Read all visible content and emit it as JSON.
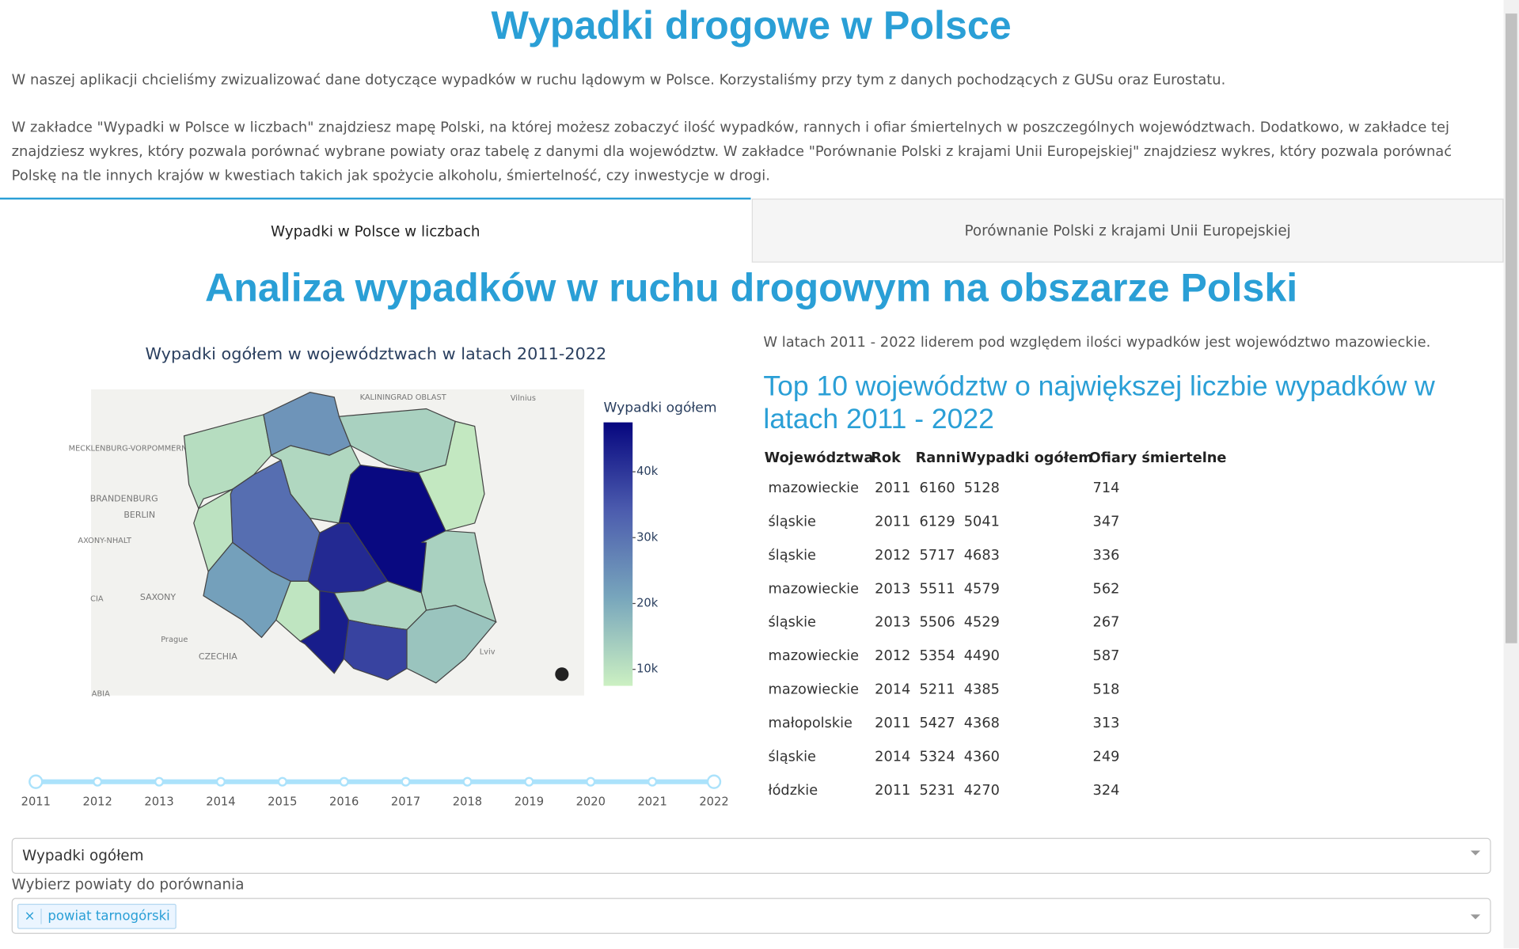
{
  "header": {
    "title": "Wypadki drogowe w Polsce",
    "paragraphs": [
      "W naszej aplikacji chcieliśmy zwizualizować dane dotyczące wypadków w ruchu lądowym w Polsce. Korzystaliśmy przy tym z danych pochodzących z GUSu oraz Eurostatu.",
      "W zakładce \"Wypadki w Polsce w liczbach\" znajdziesz mapę Polski, na której możesz zobaczyć ilość wypadków, rannych i ofiar śmiertelnych w poszczególnych województwach. Dodatkowo, w zakładce tej znajdziesz wykres, który pozwala porównać wybrane powiaty oraz tabelę z danymi dla województw. W zakładce \"Porównanie Polski z krajami Unii Europejskiej\" znajdziesz wykres, który pozwala porównać Polskę na tle innych krajów w kwestiach takich jak spożycie alkoholu, śmiertelność, czy inwestycje w drogi."
    ]
  },
  "tabs": [
    "Wypadki w Polsce w liczbach",
    "Porównanie Polski z krajami Unii Europejskiej"
  ],
  "section_title": "Analiza wypadków w ruchu drogowym na obszarze Polski",
  "map": {
    "title": "Wypadki ogółem w województwach w latach 2011-2022",
    "colorbar_title": "Wypadki ogółem",
    "colorbar_ticks": [
      {
        "value": 10000,
        "label": "10k"
      },
      {
        "value": 20000,
        "label": "20k"
      },
      {
        "value": 30000,
        "label": "30k"
      },
      {
        "value": 40000,
        "label": "40k"
      }
    ],
    "clim": [
      7500,
      47500
    ],
    "colorscale": [
      "#ccf0c2",
      "#78a6bc",
      "#4c5cae",
      "#06067f"
    ],
    "regions": [
      11000,
      24000,
      13000,
      9000,
      12000,
      31000,
      10000,
      47000,
      42000,
      22000,
      9500,
      44000,
      12500,
      38000,
      13000,
      15500
    ],
    "labels": [
      "KALININGRAD OBLAST",
      "Vilnius",
      "MECKLENBURG-VORPOMMERN",
      "BRANDENBURG",
      "BERLIN",
      "AXONY-NHALT",
      "SAXONY",
      "CIA",
      "Prague",
      "CZECHIA",
      "Lviv",
      "ABIA"
    ]
  },
  "slider": {
    "marks": [
      2011,
      2012,
      2013,
      2014,
      2015,
      2016,
      2017,
      2018,
      2019,
      2020,
      2021,
      2022
    ],
    "selected": [
      2011,
      2022
    ]
  },
  "summary": "W latach 2011 - 2022 liderem pod względem ilości wypadków jest województwo mazowieckie.",
  "table": {
    "title": "Top 10 województw o największej liczbie wypadków w latach 2011 - 2022",
    "columns": [
      "Województwa",
      "Rok",
      "Ranni",
      "Wypadki ogółem",
      "Ofiary śmiertelne"
    ],
    "rows": [
      [
        "mazowieckie",
        2011,
        6160,
        5128,
        714
      ],
      [
        "śląskie",
        2011,
        6129,
        5041,
        347
      ],
      [
        "śląskie",
        2012,
        5717,
        4683,
        336
      ],
      [
        "mazowieckie",
        2013,
        5511,
        4579,
        562
      ],
      [
        "śląskie",
        2013,
        5506,
        4529,
        267
      ],
      [
        "mazowieckie",
        2012,
        5354,
        4490,
        587
      ],
      [
        "mazowieckie",
        2014,
        5211,
        4385,
        518
      ],
      [
        "małopolskie",
        2011,
        5427,
        4368,
        313
      ],
      [
        "śląskie",
        2014,
        5324,
        4360,
        249
      ],
      [
        "łódzkie",
        2011,
        5231,
        4270,
        324
      ]
    ]
  },
  "controls": {
    "dropdown_value": "Wypadki ogółem",
    "multi_label": "Wybierz powiaty do porównania",
    "remove_symbol": "×",
    "selected": [
      "powiat tarnogórski"
    ]
  }
}
